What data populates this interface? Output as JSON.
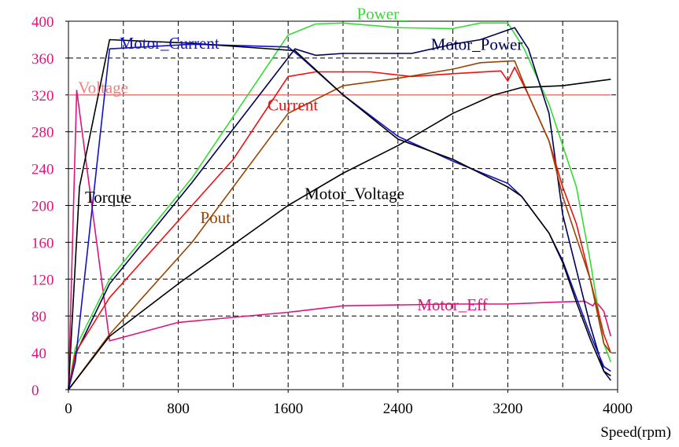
{
  "chart_data": {
    "type": "line",
    "xlabel": "Speed(rpm)",
    "ylabel": "",
    "xlim": [
      0,
      4000
    ],
    "ylim": [
      0,
      400
    ],
    "x_ticks": [
      "0",
      "800",
      "1600",
      "2400",
      "3200",
      "4000"
    ],
    "y_ticks": [
      "0",
      "40",
      "80",
      "120",
      "160",
      "200",
      "240",
      "280",
      "320",
      "360",
      "400"
    ],
    "grid": true,
    "colors": {
      "tick_y": "#e0137d",
      "tick_x": "#000000"
    },
    "series": [
      {
        "name": "Voltage",
        "color": "#f08080",
        "points": [
          [
            0,
            320
          ],
          [
            3950,
            320
          ]
        ]
      },
      {
        "name": "Motor_Eff",
        "color": "#e0137d",
        "points": [
          [
            0,
            0
          ],
          [
            60,
            325
          ],
          [
            300,
            53
          ],
          [
            800,
            73
          ],
          [
            1600,
            84
          ],
          [
            2000,
            91
          ],
          [
            2800,
            93
          ],
          [
            3200,
            93
          ],
          [
            3550,
            95
          ],
          [
            3760,
            96
          ],
          [
            3820,
            91
          ],
          [
            3840,
            96
          ],
          [
            3900,
            85
          ],
          [
            3950,
            58
          ]
        ]
      },
      {
        "name": "Power_",
        "color": "#33dd33",
        "points": [
          [
            0,
            0
          ],
          [
            50,
            45
          ],
          [
            300,
            120
          ],
          [
            900,
            230
          ],
          [
            1600,
            385
          ],
          [
            1800,
            397
          ],
          [
            2000,
            398
          ],
          [
            2400,
            393
          ],
          [
            2800,
            392
          ],
          [
            3000,
            398
          ],
          [
            3200,
            398
          ],
          [
            3320,
            370
          ],
          [
            3500,
            310
          ],
          [
            3700,
            220
          ],
          [
            3800,
            140
          ],
          [
            3900,
            50
          ],
          [
            3950,
            30
          ]
        ]
      },
      {
        "name": "Motor_Power",
        "color": "#000055",
        "points": [
          [
            0,
            0
          ],
          [
            50,
            38
          ],
          [
            300,
            115
          ],
          [
            900,
            225
          ],
          [
            1650,
            370
          ],
          [
            1800,
            363
          ],
          [
            2000,
            365
          ],
          [
            2500,
            365
          ],
          [
            2800,
            375
          ],
          [
            3000,
            380
          ],
          [
            3250,
            393
          ],
          [
            3350,
            370
          ],
          [
            3500,
            300
          ],
          [
            3600,
            190
          ],
          [
            3800,
            70
          ],
          [
            3900,
            20
          ],
          [
            3950,
            10
          ]
        ]
      },
      {
        "name": "Current",
        "color": "#ee1111",
        "points": [
          [
            0,
            0
          ],
          [
            50,
            40
          ],
          [
            300,
            100
          ],
          [
            900,
            200
          ],
          [
            1200,
            250
          ],
          [
            1600,
            340
          ],
          [
            1800,
            345
          ],
          [
            2200,
            345
          ],
          [
            2500,
            340
          ],
          [
            2800,
            343
          ],
          [
            3150,
            346
          ],
          [
            3200,
            335
          ],
          [
            3250,
            350
          ],
          [
            3350,
            320
          ],
          [
            3500,
            270
          ],
          [
            3600,
            220
          ],
          [
            3700,
            180
          ],
          [
            3800,
            120
          ],
          [
            3900,
            60
          ],
          [
            3950,
            40
          ]
        ]
      },
      {
        "name": "Pout",
        "color": "#994400",
        "points": [
          [
            0,
            0
          ],
          [
            100,
            20
          ],
          [
            300,
            60
          ],
          [
            900,
            160
          ],
          [
            1600,
            300
          ],
          [
            2000,
            330
          ],
          [
            2400,
            338
          ],
          [
            2800,
            348
          ],
          [
            3000,
            355
          ],
          [
            3250,
            357
          ],
          [
            3350,
            320
          ],
          [
            3500,
            270
          ],
          [
            3600,
            210
          ],
          [
            3800,
            120
          ],
          [
            3900,
            50
          ],
          [
            3950,
            40
          ]
        ]
      },
      {
        "name": "Motor_Voltage",
        "color": "#000000",
        "points": [
          [
            0,
            0
          ],
          [
            300,
            58
          ],
          [
            800,
            115
          ],
          [
            1600,
            200
          ],
          [
            2000,
            235
          ],
          [
            2400,
            265
          ],
          [
            2800,
            300
          ],
          [
            3100,
            320
          ],
          [
            3300,
            328
          ],
          [
            3600,
            330
          ],
          [
            3800,
            334
          ],
          [
            3950,
            337
          ]
        ]
      },
      {
        "name": "Motor_Current",
        "color": "#1111cc",
        "points": [
          [
            0,
            0
          ],
          [
            50,
            30
          ],
          [
            300,
            370
          ],
          [
            900,
            375
          ],
          [
            1600,
            372
          ],
          [
            1700,
            360
          ],
          [
            2000,
            320
          ],
          [
            2400,
            275
          ],
          [
            2800,
            248
          ],
          [
            3200,
            224
          ],
          [
            3300,
            210
          ],
          [
            3500,
            170
          ],
          [
            3600,
            140
          ],
          [
            3700,
            100
          ],
          [
            3800,
            60
          ],
          [
            3900,
            25
          ],
          [
            3950,
            20
          ]
        ]
      },
      {
        "name": "Torque",
        "color": "#000000",
        "points": [
          [
            0,
            0
          ],
          [
            80,
            220
          ],
          [
            300,
            380
          ],
          [
            900,
            376
          ],
          [
            1650,
            368
          ],
          [
            2000,
            320
          ],
          [
            2400,
            272
          ],
          [
            2800,
            250
          ],
          [
            3200,
            220
          ],
          [
            3300,
            210
          ],
          [
            3500,
            170
          ],
          [
            3600,
            138
          ],
          [
            3700,
            95
          ],
          [
            3800,
            55
          ],
          [
            3900,
            20
          ],
          [
            3950,
            15
          ]
        ]
      }
    ],
    "annotations": [
      {
        "text": "Voltage",
        "x": 70,
        "y": 322,
        "color": "#f08080"
      },
      {
        "text": "Motor_Eff",
        "x": 2540,
        "y": 86,
        "color": "#e0137d"
      },
      {
        "text": "Power_",
        "x": 2100,
        "y": 402,
        "color": "#33dd33"
      },
      {
        "text": "Motor_Power",
        "x": 2640,
        "y": 369,
        "color": "#000055"
      },
      {
        "text": "Current",
        "x": 1450,
        "y": 303,
        "color": "#ee1111"
      },
      {
        "text": "Pout",
        "x": 960,
        "y": 181,
        "color": "#994400"
      },
      {
        "text": "Motor_Voltage",
        "x": 1720,
        "y": 207,
        "color": "#000000"
      },
      {
        "text": "Motor_Current",
        "x": 370,
        "y": 370,
        "color": "#1111cc"
      },
      {
        "text": "Torque",
        "x": 120,
        "y": 203,
        "color": "#000000"
      }
    ]
  }
}
